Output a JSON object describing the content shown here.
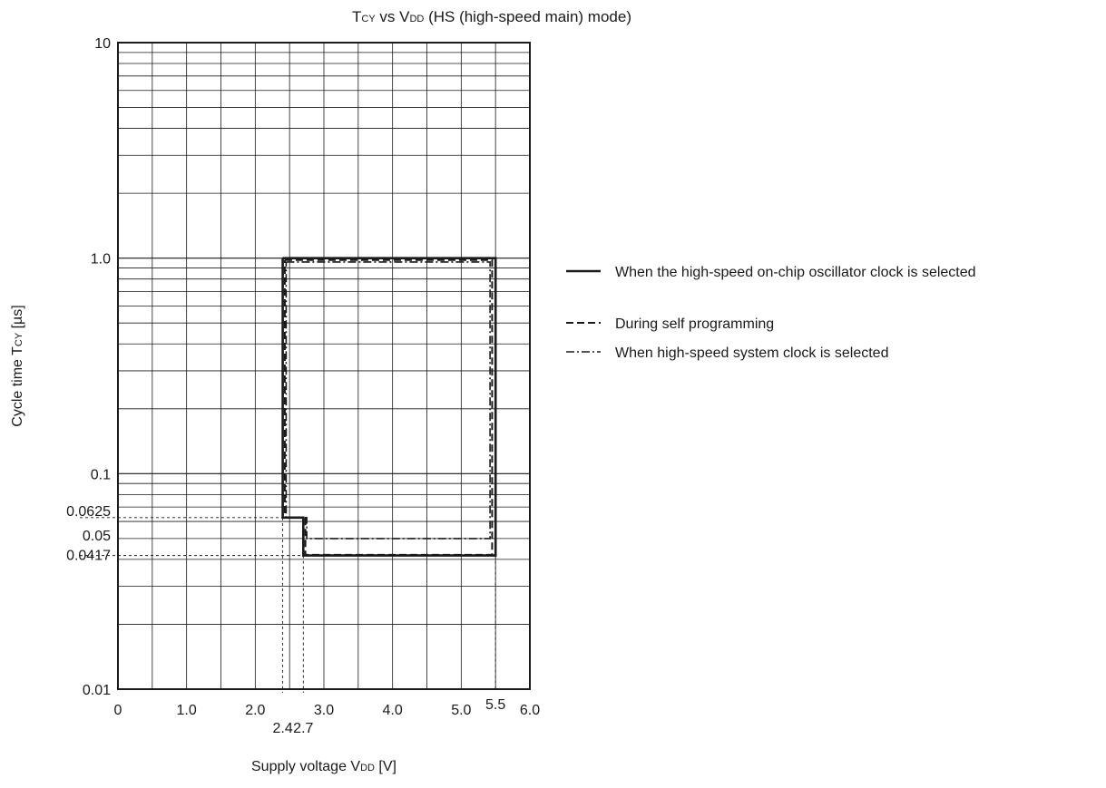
{
  "chart_data": {
    "type": "line",
    "title": {
      "parts": [
        {
          "t": "T",
          "sub": false
        },
        {
          "t": "CY",
          "sub": true
        },
        {
          "t": " vs V",
          "sub": false
        },
        {
          "t": "DD",
          "sub": true
        },
        {
          "t": " (HS (high-speed main) mode)",
          "sub": false
        }
      ]
    },
    "xlabel": {
      "parts": [
        {
          "t": "Supply voltage V",
          "sub": false
        },
        {
          "t": "DD",
          "sub": true
        },
        {
          "t": " [V]",
          "sub": false
        }
      ]
    },
    "ylabel": {
      "parts": [
        {
          "t": "Cycle time T",
          "sub": false
        },
        {
          "t": "CY",
          "sub": true
        },
        {
          "t": " [µs]",
          "sub": false
        }
      ]
    },
    "x_scale": "linear",
    "y_scale": "log",
    "xlim": [
      0,
      6.0
    ],
    "ylim": [
      0.01,
      10
    ],
    "grid": true,
    "x_ticks": [
      {
        "v": 0,
        "label": "0"
      },
      {
        "v": 1.0,
        "label": "1.0"
      },
      {
        "v": 2.0,
        "label": "2.0"
      },
      {
        "v": 3.0,
        "label": "3.0"
      },
      {
        "v": 4.0,
        "label": "4.0"
      },
      {
        "v": 5.0,
        "label": "5.0"
      },
      {
        "v": 6.0,
        "label": "6.0"
      }
    ],
    "x_marks": [
      {
        "v": 2.4,
        "label": "2.4",
        "pos": "below"
      },
      {
        "v": 2.7,
        "label": "2.7",
        "pos": "below"
      },
      {
        "v": 5.5,
        "label": "5.5",
        "pos": "above"
      }
    ],
    "y_ticks": [
      {
        "v": 10,
        "label": "10"
      },
      {
        "v": 1.0,
        "label": "1.0"
      },
      {
        "v": 0.1,
        "label": "0.1"
      },
      {
        "v": 0.01,
        "label": "0.01"
      }
    ],
    "y_marks": [
      {
        "v": 0.0625,
        "label": "0.0625"
      },
      {
        "v": 0.05,
        "label": "0.05"
      },
      {
        "v": 0.0417,
        "label": "0.0417"
      }
    ],
    "legend_position": "right",
    "series": [
      {
        "name": "When the high-speed on-chip oscillator clock is selected",
        "style": "solid",
        "points": [
          [
            2.4,
            1.0
          ],
          [
            5.5,
            1.0
          ],
          [
            5.5,
            0.0417
          ],
          [
            2.7,
            0.0417
          ],
          [
            2.7,
            0.0625
          ],
          [
            2.4,
            0.0625
          ],
          [
            2.4,
            1.0
          ]
        ]
      },
      {
        "name": "During self programming",
        "style": "dashed",
        "points": [
          [
            2.43,
            0.98
          ],
          [
            5.45,
            0.98
          ],
          [
            5.45,
            0.042
          ],
          [
            2.73,
            0.042
          ],
          [
            2.73,
            0.0625
          ],
          [
            2.43,
            0.0625
          ],
          [
            2.43,
            0.98
          ]
        ]
      },
      {
        "name": "When high-speed system clock is selected",
        "style": "dashdot",
        "points": [
          [
            2.45,
            0.96
          ],
          [
            5.42,
            0.96
          ],
          [
            5.42,
            0.05
          ],
          [
            2.75,
            0.05
          ],
          [
            2.75,
            0.0625
          ],
          [
            2.45,
            0.0625
          ],
          [
            2.45,
            0.96
          ]
        ]
      }
    ]
  }
}
